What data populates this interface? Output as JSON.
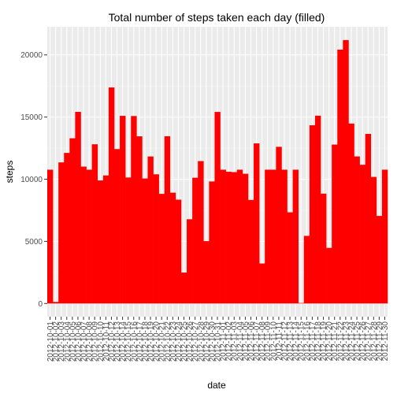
{
  "chart_data": {
    "type": "bar",
    "title": "Total number of steps taken each day (filled)",
    "xlabel": "date",
    "ylabel": "steps",
    "ylim": [
      -1059,
      22265
    ],
    "yticks": [
      0,
      5000,
      10000,
      15000,
      20000
    ],
    "grid": true,
    "colors": {
      "bar": "#ff0000",
      "panel": "#ebebeb",
      "grid_major": "#ffffff",
      "grid_minor": "#f5f5f5"
    },
    "categories": [
      "2012-10-01",
      "2012-10-02",
      "2012-10-03",
      "2012-10-04",
      "2012-10-05",
      "2012-10-06",
      "2012-10-07",
      "2012-10-08",
      "2012-10-09",
      "2012-10-10",
      "2012-10-11",
      "2012-10-12",
      "2012-10-13",
      "2012-10-14",
      "2012-10-15",
      "2012-10-16",
      "2012-10-17",
      "2012-10-18",
      "2012-10-19",
      "2012-10-20",
      "2012-10-21",
      "2012-10-22",
      "2012-10-23",
      "2012-10-24",
      "2012-10-25",
      "2012-10-26",
      "2012-10-27",
      "2012-10-28",
      "2012-10-29",
      "2012-10-30",
      "2012-10-31",
      "2012-11-01",
      "2012-11-02",
      "2012-11-03",
      "2012-11-04",
      "2012-11-05",
      "2012-11-06",
      "2012-11-07",
      "2012-11-08",
      "2012-11-09",
      "2012-11-10",
      "2012-11-11",
      "2012-11-12",
      "2012-11-13",
      "2012-11-14",
      "2012-11-15",
      "2012-11-16",
      "2012-11-17",
      "2012-11-18",
      "2012-11-19",
      "2012-11-20",
      "2012-11-21",
      "2012-11-22",
      "2012-11-23",
      "2012-11-24",
      "2012-11-25",
      "2012-11-26",
      "2012-11-27",
      "2012-11-28",
      "2012-11-29",
      "2012-11-30"
    ],
    "values": [
      10766,
      126,
      11352,
      12116,
      13294,
      15420,
      11015,
      10766,
      12811,
      9900,
      10304,
      17382,
      12426,
      15098,
      10139,
      15084,
      13452,
      10056,
      11829,
      10395,
      8821,
      13460,
      8918,
      8355,
      2492,
      6778,
      10119,
      11458,
      5018,
      9819,
      15414,
      10766,
      10600,
      10571,
      10766,
      10439,
      8334,
      12883,
      3219,
      10766,
      10766,
      12608,
      10765,
      7336,
      10766,
      41,
      5441,
      14339,
      15110,
      8841,
      4472,
      12787,
      20427,
      21194,
      14478,
      11834,
      11162,
      13646,
      10183,
      7047,
      10766
    ]
  }
}
